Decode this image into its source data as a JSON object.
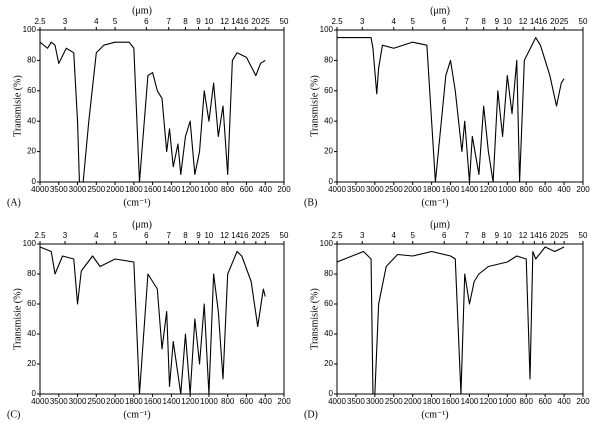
{
  "chart_data": [
    {
      "type": "line",
      "panel": "(A)",
      "xlabel": "(cm⁻¹)",
      "x2label": "(μm)",
      "ylabel": "Transmisie (%)",
      "xlim": [
        4000,
        200
      ],
      "xticks": [
        4000,
        3500,
        3000,
        2500,
        2000,
        1800,
        1600,
        1400,
        1200,
        1000,
        800,
        600,
        400,
        200
      ],
      "x2ticks": [
        2.5,
        3,
        4,
        5,
        6,
        7,
        8,
        9,
        10,
        12,
        14,
        16,
        20,
        25,
        50
      ],
      "ylim": [
        0,
        100
      ],
      "yticks": [
        0,
        20,
        40,
        60,
        80,
        100
      ],
      "color": "#000000",
      "x": [
        4000,
        3800,
        3700,
        3600,
        3500,
        3300,
        3100,
        3000,
        2950,
        2850,
        2700,
        2500,
        2300,
        2000,
        1850,
        1800,
        1740,
        1650,
        1600,
        1550,
        1500,
        1450,
        1420,
        1380,
        1330,
        1300,
        1250,
        1200,
        1150,
        1100,
        1050,
        1000,
        950,
        900,
        850,
        800,
        750,
        700,
        600,
        500,
        450,
        400
      ],
      "values": [
        92,
        88,
        92,
        90,
        78,
        88,
        85,
        40,
        0,
        0,
        40,
        85,
        90,
        92,
        92,
        88,
        0,
        70,
        72,
        60,
        55,
        20,
        35,
        10,
        25,
        5,
        30,
        40,
        5,
        20,
        60,
        40,
        65,
        30,
        50,
        5,
        80,
        85,
        82,
        70,
        78,
        80
      ]
    },
    {
      "type": "line",
      "panel": "(B)",
      "xlabel": "(cm⁻¹)",
      "x2label": "(μm)",
      "ylabel": "Transmisie (%)",
      "xlim": [
        4000,
        200
      ],
      "xticks": [
        4000,
        3500,
        3000,
        2500,
        2000,
        1800,
        1600,
        1400,
        1200,
        1000,
        800,
        600,
        400,
        200
      ],
      "x2ticks": [
        2.5,
        3,
        4,
        5,
        6,
        7,
        8,
        9,
        10,
        12,
        14,
        16,
        20,
        25,
        50
      ],
      "ylim": [
        0,
        100
      ],
      "yticks": [
        0,
        20,
        40,
        60,
        80,
        100
      ],
      "color": "#000000",
      "x": [
        4000,
        3500,
        3100,
        3050,
        2950,
        2900,
        2800,
        2500,
        2000,
        1850,
        1760,
        1650,
        1600,
        1550,
        1480,
        1450,
        1400,
        1370,
        1300,
        1250,
        1200,
        1150,
        1100,
        1050,
        1000,
        950,
        900,
        870,
        820,
        700,
        650,
        550,
        480,
        430,
        400
      ],
      "values": [
        95,
        95,
        95,
        88,
        58,
        75,
        90,
        88,
        92,
        90,
        0,
        70,
        80,
        60,
        20,
        40,
        0,
        30,
        5,
        50,
        20,
        0,
        60,
        30,
        70,
        45,
        80,
        0,
        80,
        95,
        90,
        70,
        50,
        65,
        68
      ]
    },
    {
      "type": "line",
      "panel": "(C)",
      "xlabel": "(cm⁻¹)",
      "x2label": "(μm)",
      "ylabel": "Transmisie (%)",
      "xlim": [
        4000,
        200
      ],
      "xticks": [
        4000,
        3500,
        3000,
        2500,
        2000,
        1800,
        1600,
        1400,
        1200,
        1000,
        800,
        600,
        400,
        200
      ],
      "x2ticks": [
        2.5,
        3,
        4,
        5,
        6,
        7,
        8,
        9,
        10,
        12,
        14,
        16,
        20,
        25,
        50
      ],
      "ylim": [
        0,
        100
      ],
      "yticks": [
        0,
        20,
        40,
        60,
        80,
        100
      ],
      "color": "#000000",
      "x": [
        4000,
        3700,
        3600,
        3400,
        3100,
        3000,
        2900,
        2600,
        2400,
        2000,
        1800,
        1740,
        1650,
        1550,
        1500,
        1450,
        1420,
        1380,
        1300,
        1250,
        1200,
        1150,
        1100,
        1050,
        1000,
        950,
        900,
        850,
        800,
        700,
        650,
        550,
        480,
        420,
        400
      ],
      "values": [
        98,
        95,
        80,
        92,
        90,
        60,
        82,
        92,
        85,
        90,
        88,
        0,
        80,
        70,
        30,
        55,
        5,
        35,
        0,
        40,
        0,
        50,
        20,
        60,
        0,
        80,
        55,
        10,
        80,
        95,
        92,
        75,
        45,
        70,
        65
      ]
    },
    {
      "type": "line",
      "panel": "(D)",
      "xlabel": "(cm⁻¹)",
      "x2label": "(μm)",
      "ylabel": "Transmisie (%)",
      "xlim": [
        4000,
        200
      ],
      "xticks": [
        4000,
        3500,
        3000,
        2500,
        2000,
        1800,
        1600,
        1400,
        1200,
        1000,
        800,
        600,
        400,
        200
      ],
      "x2ticks": [
        2.5,
        3,
        4,
        5,
        6,
        7,
        8,
        9,
        10,
        12,
        14,
        16,
        20,
        25,
        50
      ],
      "ylim": [
        0,
        100
      ],
      "yticks": [
        0,
        20,
        40,
        60,
        80,
        100
      ],
      "color": "#000000",
      "x": [
        4000,
        3600,
        3300,
        3100,
        3050,
        3000,
        2900,
        2700,
        2400,
        2000,
        1800,
        1600,
        1550,
        1490,
        1450,
        1400,
        1350,
        1300,
        1200,
        1000,
        900,
        800,
        760,
        730,
        700,
        600,
        500,
        400
      ],
      "values": [
        88,
        92,
        95,
        90,
        0,
        0,
        60,
        85,
        93,
        92,
        95,
        92,
        90,
        0,
        80,
        60,
        75,
        80,
        85,
        88,
        92,
        90,
        10,
        95,
        90,
        98,
        95,
        98
      ]
    }
  ]
}
